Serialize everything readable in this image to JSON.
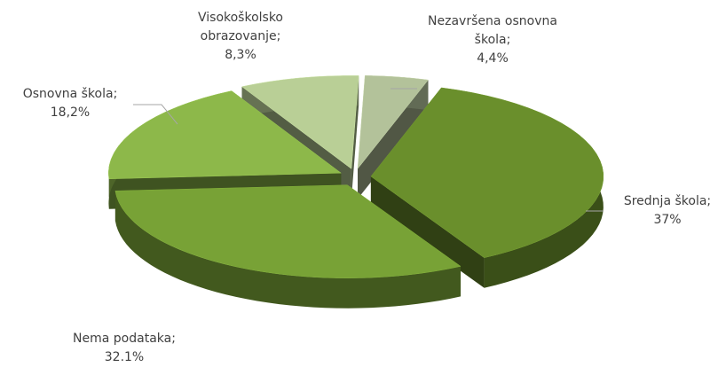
{
  "chart_data": {
    "type": "pie3d",
    "categories": [
      "Nezavršena osnovna škola",
      "Srednja škola",
      "Nema podataka",
      "Osnovna škola",
      "Visokoškolsko obrazovanje"
    ],
    "values": [
      4.4,
      37,
      32.1,
      18.2,
      8.3
    ],
    "value_labels": [
      "4,4%",
      "37%",
      "32.1%",
      "18,2%",
      "8,3%"
    ],
    "label_separator": ";",
    "colors": [
      "#b3c29a",
      "#6a8f2c",
      "#78a236",
      "#8db84a",
      "#b9cf96"
    ]
  }
}
